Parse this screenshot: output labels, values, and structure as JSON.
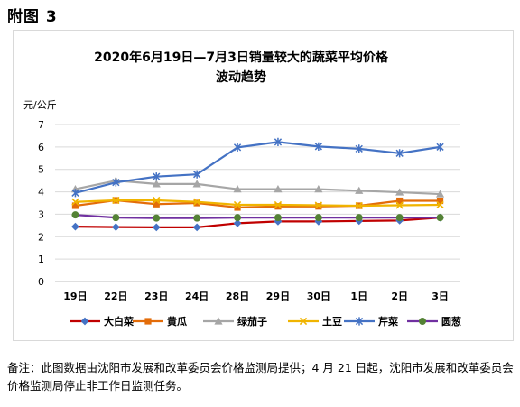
{
  "header": {
    "label": "附图 3"
  },
  "chart_data": {
    "type": "line",
    "title_line1": "2020年6月19日—7月3日销量较大的蔬菜平均价格",
    "title_line2": "波动趋势",
    "ylabel": "元/公斤",
    "xlabel": "",
    "ylim": [
      0,
      7
    ],
    "yticks": [
      0,
      1,
      2,
      3,
      4,
      5,
      6,
      7
    ],
    "grid": true,
    "legend_position": "bottom",
    "categories": [
      "19日",
      "22日",
      "23日",
      "24日",
      "28日",
      "29日",
      "30日",
      "1日",
      "2日",
      "3日"
    ],
    "series": [
      {
        "name": "大白菜",
        "color": "#c00000",
        "marker": "diamond",
        "marker_color": "#4472c4",
        "values": [
          2.45,
          2.43,
          2.42,
          2.42,
          2.6,
          2.68,
          2.68,
          2.7,
          2.72,
          2.85
        ]
      },
      {
        "name": "黄瓜",
        "color": "#e36c09",
        "marker": "square",
        "marker_color": "#e36c09",
        "values": [
          3.38,
          3.62,
          3.45,
          3.5,
          3.3,
          3.35,
          3.35,
          3.38,
          3.6,
          3.6
        ]
      },
      {
        "name": "绿茄子",
        "color": "#a6a6a6",
        "marker": "triangle",
        "marker_color": "#a6a6a6",
        "values": [
          4.12,
          4.5,
          4.35,
          4.35,
          4.12,
          4.12,
          4.12,
          4.05,
          3.98,
          3.9
        ]
      },
      {
        "name": "土豆",
        "color": "#f0b400",
        "marker": "x",
        "marker_color": "#f0b400",
        "values": [
          3.55,
          3.62,
          3.62,
          3.55,
          3.42,
          3.42,
          3.4,
          3.38,
          3.4,
          3.42
        ]
      },
      {
        "name": "芹菜",
        "color": "#4472c4",
        "marker": "star",
        "marker_color": "#4472c4",
        "values": [
          3.95,
          4.42,
          4.68,
          4.78,
          5.98,
          6.22,
          6.02,
          5.92,
          5.72,
          6.0
        ]
      },
      {
        "name": "圆葱",
        "color": "#7030a0",
        "marker": "circle",
        "marker_color": "#548235",
        "values": [
          2.97,
          2.85,
          2.83,
          2.83,
          2.85,
          2.85,
          2.85,
          2.85,
          2.85,
          2.85
        ]
      }
    ]
  },
  "note": "备注：此图数据由沈阳市发展和改革委员会价格监测局提供；4 月 21 日起，沈阳市发展和改革委员会价格监测局停止非工作日监测任务。"
}
